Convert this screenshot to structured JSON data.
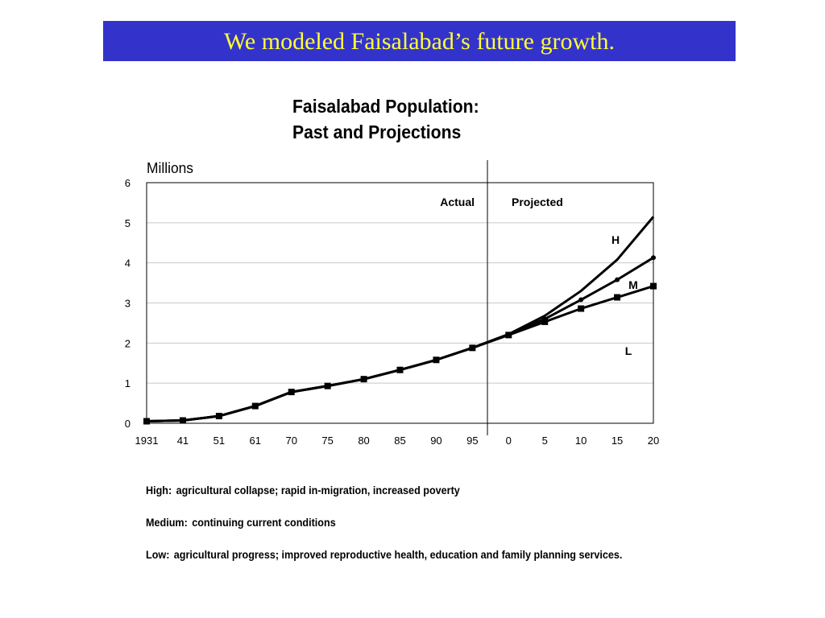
{
  "banner": {
    "title": "We modeled Faisalabad’s future growth."
  },
  "chart_data": {
    "type": "line",
    "title": [
      "Faisalabad Population:",
      "Past and Projections"
    ],
    "ylabel": "Millions",
    "xlabel": "",
    "ylim": [
      0,
      6
    ],
    "yticks": [
      0,
      1,
      2,
      3,
      4,
      5,
      6
    ],
    "categories": [
      "1931",
      "41",
      "51",
      "61",
      "70",
      "75",
      "80",
      "85",
      "90",
      "95",
      "0",
      "5",
      "10",
      "15",
      "20"
    ],
    "grid": true,
    "divider_after_category": "95",
    "region_labels": {
      "left": "Actual",
      "right": "Projected"
    },
    "series": [
      {
        "name": "H",
        "marker": "none",
        "values": [
          0.05,
          0.07,
          0.18,
          0.43,
          0.78,
          0.93,
          1.1,
          1.33,
          1.58,
          1.88,
          2.22,
          2.68,
          3.3,
          4.08,
          5.15
        ]
      },
      {
        "name": "M",
        "marker": "circle",
        "values": [
          0.05,
          0.07,
          0.18,
          0.43,
          0.78,
          0.93,
          1.1,
          1.33,
          1.58,
          1.88,
          2.22,
          2.6,
          3.08,
          3.58,
          4.13
        ]
      },
      {
        "name": "L",
        "marker": "square",
        "values": [
          0.05,
          0.07,
          0.18,
          0.43,
          0.78,
          0.93,
          1.1,
          1.33,
          1.58,
          1.88,
          2.2,
          2.53,
          2.86,
          3.14,
          3.42
        ]
      }
    ],
    "series_labels": [
      "H",
      "M",
      "L"
    ],
    "colors": {
      "line": "#000000",
      "grid": "#c8c8c8",
      "divider": "#000000"
    }
  },
  "notes": [
    {
      "label": "High:",
      "text": "agricultural collapse; rapid in-migration, increased poverty"
    },
    {
      "label": "Medium:",
      "text": "continuing current conditions"
    },
    {
      "label": "Low:",
      "text": "agricultural progress; improved reproductive health, education and family planning services."
    }
  ]
}
